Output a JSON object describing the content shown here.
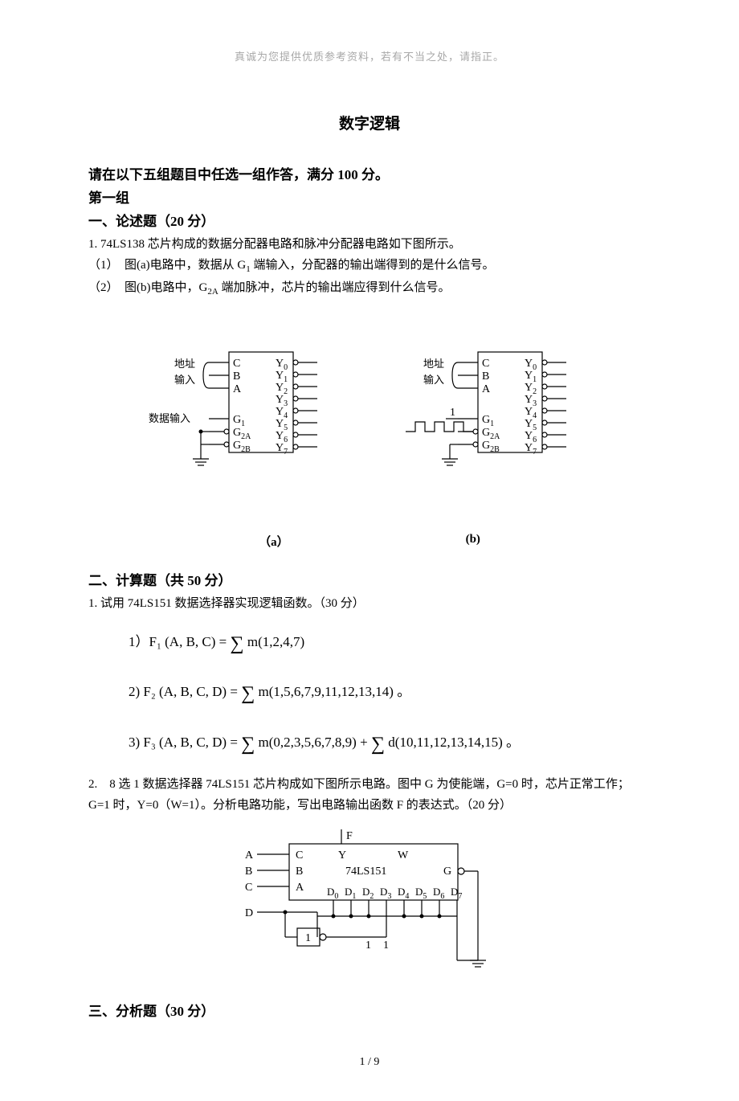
{
  "header_note": "真诚为您提供优质参考资料，若有不当之处，请指正。",
  "title_main": "数字逻辑",
  "intro_line": "请在以下五组题目中任选一组作答，满分 100 分。",
  "group_label": "第一组",
  "section1": {
    "heading": "一、论述题（20 分）",
    "q1": "1. 74LS138 芯片构成的数据分配器电路和脉冲分配器电路如下图所示。",
    "q1_1_pre": "（1）　图(a)电路中，数据从 G",
    "q1_1_sub": "1",
    "q1_1_post": " 端输入，分配器的输出端得到的是什么信号。",
    "q1_2_pre": "（2）　图(b)电路中，G",
    "q1_2_sub": "2A",
    "q1_2_post": " 端加脉冲，芯片的输出端应得到什么信号。"
  },
  "diagram1": {
    "addr_label": "地址",
    "input_label": "输入",
    "data_input_label": "数据输入",
    "one_label": "1",
    "pins_left": [
      "C",
      "B",
      "A"
    ],
    "pins_g": [
      "G",
      "G",
      "G"
    ],
    "pins_g_sub": [
      "1",
      "2A",
      "2B"
    ],
    "pins_y_prefix": "Y",
    "caption_a": "（a）",
    "caption_b": "(b)",
    "colors": {
      "stroke": "#000000",
      "fill": "#ffffff",
      "text": "#000000"
    },
    "stroke_width": 1.2,
    "font_size_label": 14,
    "font_size_pin": 14,
    "font_size_sub": 10
  },
  "section2": {
    "heading": "二、计算题（共 50 分）",
    "q1": "1.  试用 74LS151 数据选择器实现逻辑函数。（30 分）",
    "eq1_lhs": "1）F₁ (A, B, C) = ",
    "eq1_rhs": " m(1,2,4,7)",
    "eq2_lhs": "2) F₂ (A, B, C, D) = ",
    "eq2_rhs": " m(1,5,6,7,9,11,12,13,14) 。",
    "eq3_lhs": "3) F₃ (A, B, C, D) = ",
    "eq3_mid": " m(0,2,3,5,6,7,8,9) + ",
    "eq3_rhs": " d(10,11,12,13,14,15) 。",
    "q2": "2.　8 选 1 数据选择器 74LS151 芯片构成如下图所示电路。图中 G 为使能端，G=0 时，芯片正常工作；G=1 时，Y=0（W=1）。分析电路功能，写出电路输出函数 F 的表达式。（20 分）"
  },
  "diagram2": {
    "inputs_left": [
      "A",
      "B",
      "C",
      "D"
    ],
    "internal_left": [
      "C",
      "B",
      "A"
    ],
    "top_out": "F",
    "label_Y": "Y",
    "label_W": "W",
    "chip": "74LS151",
    "label_G": "G",
    "d_prefix": "D",
    "gate_label": "1",
    "bottom_ones": [
      "1",
      "1"
    ],
    "colors": {
      "stroke": "#000000",
      "text": "#000000"
    },
    "stroke_width": 1.2,
    "font_size": 14,
    "font_size_sub": 10
  },
  "section3": {
    "heading": "三、分析题（30 分）"
  },
  "page_number": "1  /  9"
}
